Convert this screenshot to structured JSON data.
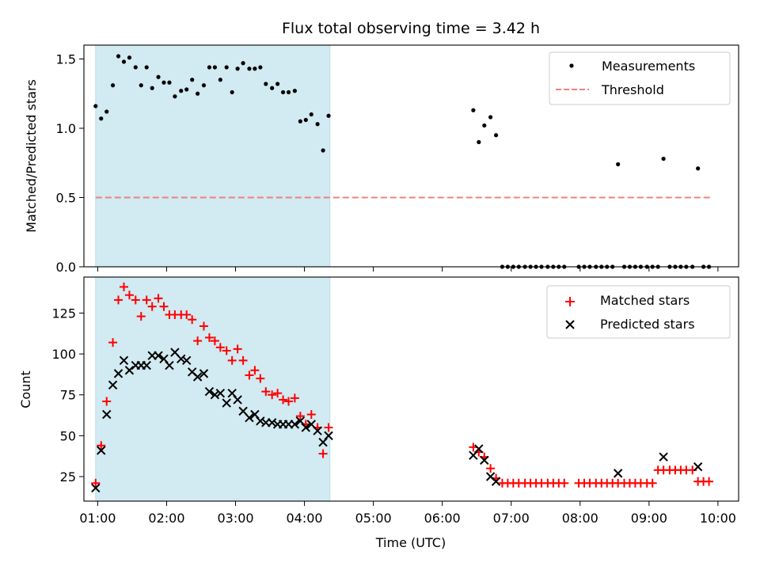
{
  "chart_data": [
    {
      "type": "scatter",
      "title": "Flux total observing time = 3.42 h",
      "ylabel": "Matched/Predicted stars",
      "xlabel": "",
      "xlim": [
        0.8,
        10.3
      ],
      "ylim": [
        0,
        1.6
      ],
      "yticks": [
        "0.0",
        "0.5",
        "1.0",
        "1.5"
      ],
      "legend": "top-right",
      "shaded_span": {
        "x0": 0.97,
        "x1": 4.37,
        "color": "#add8e6"
      },
      "series": [
        {
          "name": "Measurements",
          "marker": "dot",
          "color": "#000000",
          "points": [
            [
              0.97,
              1.16
            ],
            [
              1.05,
              1.07
            ],
            [
              1.13,
              1.12
            ],
            [
              1.22,
              1.31
            ],
            [
              1.3,
              1.52
            ],
            [
              1.38,
              1.48
            ],
            [
              1.46,
              1.51
            ],
            [
              1.55,
              1.44
            ],
            [
              1.63,
              1.31
            ],
            [
              1.71,
              1.44
            ],
            [
              1.79,
              1.29
            ],
            [
              1.88,
              1.37
            ],
            [
              1.96,
              1.33
            ],
            [
              2.04,
              1.33
            ],
            [
              2.12,
              1.23
            ],
            [
              2.21,
              1.27
            ],
            [
              2.29,
              1.28
            ],
            [
              2.37,
              1.35
            ],
            [
              2.45,
              1.25
            ],
            [
              2.54,
              1.31
            ],
            [
              2.62,
              1.44
            ],
            [
              2.7,
              1.44
            ],
            [
              2.78,
              1.35
            ],
            [
              2.87,
              1.44
            ],
            [
              2.95,
              1.26
            ],
            [
              3.03,
              1.43
            ],
            [
              3.11,
              1.47
            ],
            [
              3.2,
              1.43
            ],
            [
              3.28,
              1.43
            ],
            [
              3.36,
              1.44
            ],
            [
              3.44,
              1.32
            ],
            [
              3.53,
              1.29
            ],
            [
              3.61,
              1.32
            ],
            [
              3.69,
              1.26
            ],
            [
              3.77,
              1.26
            ],
            [
              3.86,
              1.27
            ],
            [
              3.94,
              1.05
            ],
            [
              4.02,
              1.06
            ],
            [
              4.1,
              1.1
            ],
            [
              4.19,
              1.03
            ],
            [
              4.27,
              0.84
            ],
            [
              4.35,
              1.09
            ],
            [
              6.45,
              1.13
            ],
            [
              6.53,
              0.9
            ],
            [
              6.61,
              1.02
            ],
            [
              6.7,
              1.08
            ],
            [
              6.78,
              0.95
            ],
            [
              6.87,
              0
            ],
            [
              6.95,
              0
            ],
            [
              7.03,
              0
            ],
            [
              7.11,
              0
            ],
            [
              7.2,
              0
            ],
            [
              7.28,
              0
            ],
            [
              7.36,
              0
            ],
            [
              7.44,
              0
            ],
            [
              7.53,
              0
            ],
            [
              7.61,
              0
            ],
            [
              7.69,
              0
            ],
            [
              7.77,
              0
            ],
            [
              7.98,
              0
            ],
            [
              8.06,
              0
            ],
            [
              8.14,
              0
            ],
            [
              8.23,
              0
            ],
            [
              8.31,
              0
            ],
            [
              8.39,
              0
            ],
            [
              8.47,
              0
            ],
            [
              8.55,
              0.74
            ],
            [
              8.64,
              0
            ],
            [
              8.72,
              0
            ],
            [
              8.8,
              0
            ],
            [
              8.88,
              0
            ],
            [
              8.97,
              0
            ],
            [
              9.05,
              0
            ],
            [
              9.13,
              0
            ],
            [
              9.21,
              0.78
            ],
            [
              9.3,
              0
            ],
            [
              9.38,
              0
            ],
            [
              9.46,
              0
            ],
            [
              9.54,
              0
            ],
            [
              9.63,
              0
            ],
            [
              9.71,
              0.71
            ],
            [
              9.79,
              0
            ],
            [
              9.87,
              0
            ]
          ]
        },
        {
          "name": "Threshold",
          "marker": "dashed-line",
          "color": "#f08080",
          "points": [
            [
              0.97,
              0.5
            ],
            [
              9.9,
              0.5
            ]
          ]
        }
      ]
    },
    {
      "type": "scatter",
      "title": "",
      "ylabel": "Count",
      "xlabel": "Time (UTC)",
      "xlim": [
        0.8,
        10.3
      ],
      "ylim": [
        10,
        147
      ],
      "yticks": [
        "25",
        "50",
        "75",
        "100",
        "125"
      ],
      "xticks": [
        "01:00",
        "02:00",
        "03:00",
        "04:00",
        "05:00",
        "06:00",
        "07:00",
        "08:00",
        "09:00",
        "10:00"
      ],
      "legend": "top-right",
      "shaded_span": {
        "x0": 0.97,
        "x1": 4.37,
        "color": "#add8e6"
      },
      "series": [
        {
          "name": "Matched stars",
          "marker": "plus",
          "color": "#ff0000",
          "points": [
            [
              0.97,
              21
            ],
            [
              1.05,
              44
            ],
            [
              1.13,
              71
            ],
            [
              1.22,
              107
            ],
            [
              1.3,
              133
            ],
            [
              1.38,
              141
            ],
            [
              1.46,
              136
            ],
            [
              1.55,
              133
            ],
            [
              1.63,
              123
            ],
            [
              1.71,
              133
            ],
            [
              1.79,
              129
            ],
            [
              1.88,
              134
            ],
            [
              1.96,
              129
            ],
            [
              2.04,
              124
            ],
            [
              2.12,
              124
            ],
            [
              2.21,
              124
            ],
            [
              2.29,
              124
            ],
            [
              2.37,
              121
            ],
            [
              2.45,
              108
            ],
            [
              2.54,
              117
            ],
            [
              2.62,
              110
            ],
            [
              2.7,
              108
            ],
            [
              2.78,
              104
            ],
            [
              2.87,
              102
            ],
            [
              2.95,
              96
            ],
            [
              3.03,
              103
            ],
            [
              3.11,
              96
            ],
            [
              3.2,
              87
            ],
            [
              3.28,
              90
            ],
            [
              3.36,
              85
            ],
            [
              3.44,
              77
            ],
            [
              3.53,
              75
            ],
            [
              3.61,
              76
            ],
            [
              3.69,
              72
            ],
            [
              3.77,
              71
            ],
            [
              3.86,
              73
            ],
            [
              3.94,
              62
            ],
            [
              4.02,
              57
            ],
            [
              4.1,
              63
            ],
            [
              4.19,
              55
            ],
            [
              4.27,
              39
            ],
            [
              4.35,
              55
            ],
            [
              6.45,
              43
            ],
            [
              6.53,
              40
            ],
            [
              6.61,
              37
            ],
            [
              6.7,
              30
            ],
            [
              6.78,
              24
            ],
            [
              6.87,
              21
            ],
            [
              6.95,
              21
            ],
            [
              7.03,
              21
            ],
            [
              7.11,
              21
            ],
            [
              7.2,
              21
            ],
            [
              7.28,
              21
            ],
            [
              7.36,
              21
            ],
            [
              7.44,
              21
            ],
            [
              7.53,
              21
            ],
            [
              7.61,
              21
            ],
            [
              7.69,
              21
            ],
            [
              7.77,
              21
            ],
            [
              7.98,
              21
            ],
            [
              8.06,
              21
            ],
            [
              8.14,
              21
            ],
            [
              8.23,
              21
            ],
            [
              8.31,
              21
            ],
            [
              8.39,
              21
            ],
            [
              8.47,
              21
            ],
            [
              8.55,
              21
            ],
            [
              8.64,
              21
            ],
            [
              8.72,
              21
            ],
            [
              8.8,
              21
            ],
            [
              8.88,
              21
            ],
            [
              8.97,
              21
            ],
            [
              9.05,
              21
            ],
            [
              9.13,
              29
            ],
            [
              9.21,
              29
            ],
            [
              9.3,
              29
            ],
            [
              9.38,
              29
            ],
            [
              9.46,
              29
            ],
            [
              9.54,
              29
            ],
            [
              9.63,
              29
            ],
            [
              9.71,
              22
            ],
            [
              9.79,
              22
            ],
            [
              9.87,
              22
            ]
          ]
        },
        {
          "name": "Predicted stars",
          "marker": "x",
          "color": "#000000",
          "points": [
            [
              0.97,
              18
            ],
            [
              1.05,
              41
            ],
            [
              1.13,
              63
            ],
            [
              1.22,
              81
            ],
            [
              1.3,
              88
            ],
            [
              1.38,
              96
            ],
            [
              1.46,
              90
            ],
            [
              1.55,
              93
            ],
            [
              1.63,
              93
            ],
            [
              1.71,
              93
            ],
            [
              1.79,
              99
            ],
            [
              1.88,
              99
            ],
            [
              1.96,
              97
            ],
            [
              2.04,
              93
            ],
            [
              2.12,
              101
            ],
            [
              2.21,
              97
            ],
            [
              2.29,
              96
            ],
            [
              2.37,
              89
            ],
            [
              2.45,
              86
            ],
            [
              2.54,
              88
            ],
            [
              2.62,
              77
            ],
            [
              2.7,
              75
            ],
            [
              2.78,
              76
            ],
            [
              2.87,
              70
            ],
            [
              2.95,
              76
            ],
            [
              3.03,
              72
            ],
            [
              3.11,
              65
            ],
            [
              3.2,
              61
            ],
            [
              3.28,
              63
            ],
            [
              3.36,
              59
            ],
            [
              3.44,
              58
            ],
            [
              3.53,
              58
            ],
            [
              3.61,
              57
            ],
            [
              3.69,
              57
            ],
            [
              3.77,
              57
            ],
            [
              3.86,
              57
            ],
            [
              3.94,
              59
            ],
            [
              4.02,
              55
            ],
            [
              4.1,
              57
            ],
            [
              4.19,
              53
            ],
            [
              4.27,
              46
            ],
            [
              4.35,
              50
            ],
            [
              6.45,
              38
            ],
            [
              6.53,
              42
            ],
            [
              6.61,
              35
            ],
            [
              6.7,
              25
            ],
            [
              6.78,
              22
            ],
            [
              8.55,
              27
            ],
            [
              9.21,
              37
            ],
            [
              9.71,
              31
            ]
          ]
        }
      ]
    }
  ]
}
